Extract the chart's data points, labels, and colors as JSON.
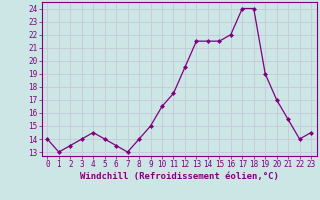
{
  "x": [
    0,
    1,
    2,
    3,
    4,
    5,
    6,
    7,
    8,
    9,
    10,
    11,
    12,
    13,
    14,
    15,
    16,
    17,
    18,
    19,
    20,
    21,
    22,
    23
  ],
  "y": [
    14,
    13,
    13.5,
    14,
    14.5,
    14,
    13.5,
    13,
    14,
    15,
    16.5,
    17.5,
    19.5,
    21.5,
    21.5,
    21.5,
    22,
    24,
    24,
    19,
    17,
    15.5,
    14,
    14.5
  ],
  "line_color": "#800080",
  "marker": "D",
  "marker_size": 2.0,
  "bg_color": "#cce5e5",
  "grid_color": "#c8c8d8",
  "ylabel_ticks": [
    13,
    14,
    15,
    16,
    17,
    18,
    19,
    20,
    21,
    22,
    23,
    24
  ],
  "xlabel": "Windchill (Refroidissement éolien,°C)",
  "ylim": [
    12.7,
    24.5
  ],
  "xlim": [
    -0.5,
    23.5
  ],
  "tick_color": "#800080",
  "label_color": "#800080",
  "label_fontsize": 6.5,
  "tick_fontsize": 5.5
}
